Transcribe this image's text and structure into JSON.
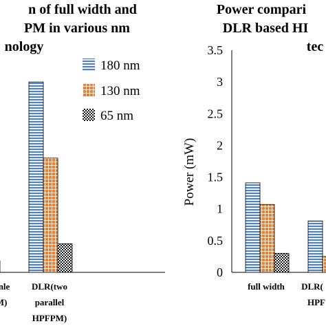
{
  "colors": {
    "s180": "#4f81bd",
    "s130": "#ed7d31",
    "s65": "#1a1a1a",
    "grid_line": "#000000",
    "axis": "#000000"
  },
  "chart_data": [
    {
      "type": "bar",
      "title_lines": [
        "n of full width and",
        "PM in various nm",
        "nology"
      ],
      "categories": [
        {
          "lines": [
            "nle",
            "M)"
          ]
        },
        {
          "lines": [
            "DLR(two",
            "parallel",
            "HPFPM)"
          ]
        }
      ],
      "series": [
        {
          "name": "180 nm",
          "pattern": "horizontal-lines",
          "values": [
            null,
            3.0
          ]
        },
        {
          "name": "130 nm",
          "pattern": "grid",
          "values": [
            null,
            1.8
          ]
        },
        {
          "name": "65 nm",
          "pattern": "checker",
          "values": [
            0.18,
            0.45
          ]
        }
      ],
      "legend": {
        "placement": "top-right"
      },
      "ylim": [
        0,
        3.5
      ]
    },
    {
      "type": "bar",
      "title_lines": [
        "Power compari",
        "DLR based HI",
        "tec"
      ],
      "ylabel": "Power (mW)",
      "yticks": [
        "0",
        "0.5",
        "1",
        "1.5",
        "2",
        "2.5",
        "3",
        "3.5"
      ],
      "ytick_values": [
        0,
        0.5,
        1,
        1.5,
        2,
        2.5,
        3,
        3.5
      ],
      "ylim": [
        0,
        3.5
      ],
      "categories": [
        {
          "lines": [
            "full width"
          ]
        },
        {
          "lines": [
            "DLR(",
            "HPF"
          ]
        }
      ],
      "series": [
        {
          "name": "180 nm",
          "pattern": "horizontal-lines",
          "values": [
            1.41,
            0.81
          ]
        },
        {
          "name": "130 nm",
          "pattern": "grid",
          "values": [
            1.07,
            0.25
          ]
        },
        {
          "name": "65 nm",
          "pattern": "checker",
          "values": [
            0.3,
            null
          ]
        }
      ]
    }
  ]
}
